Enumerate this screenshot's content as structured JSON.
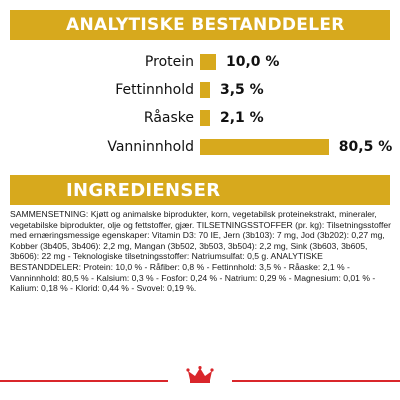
{
  "analytic": {
    "title": "ANALYTISKE BESTANDDELER",
    "rows": [
      {
        "label": "Protein",
        "value": "10,0 %",
        "percent": 10.0
      },
      {
        "label": "Fettinnhold",
        "value": "3,5 %",
        "percent": 3.5
      },
      {
        "label": "Råaske",
        "value": "2,1 %",
        "percent": 2.1
      },
      {
        "label": "Vanninnhold",
        "value": "80,5 %",
        "percent": 80.5
      }
    ]
  },
  "ingredients": {
    "title": "INGREDIENSER",
    "text": "SAMMENSETNING: Kjøtt og animalske biprodukter, korn, vegetabilsk proteinekstrakt, mineraler, vegetabilske biprodukter, olje og fettstoffer, gjær. TILSETNINGSSTOFFER (pr. kg): Tilsetningsstoffer med ernæringsmessige egenskaper: Vitamin D3: 70 IE, Jern (3b103): 7 mg, Jod (3b202): 0,27 mg, Kobber (3b405, 3b406): 2,2 mg, Mangan (3b502, 3b503, 3b504): 2,2 mg, Sink (3b603, 3b605, 3b606): 22 mg - Teknologiske tilsetningsstoffer: Natriumsulfat: 0,5 g. ANALYTISKE BESTANDDELER: Protein: 10,0 % - Råfiber: 0,8 % - Fettinnhold: 3,5 % - Råaske: 2,1 % - Vanninnhold: 80,5 % - Kalsium: 0,3 % - Fosfor: 0,24 % - Natrium: 0,29 % - Magnesium: 0,01 % - Kalium: 0,18 % - Klorid: 0,44 % - Svovel: 0,19 %."
  },
  "colors": {
    "accent": "#d7a91d",
    "brand_red": "#d9262b"
  },
  "logo": {
    "icon": "royal-canin-crown-icon"
  }
}
